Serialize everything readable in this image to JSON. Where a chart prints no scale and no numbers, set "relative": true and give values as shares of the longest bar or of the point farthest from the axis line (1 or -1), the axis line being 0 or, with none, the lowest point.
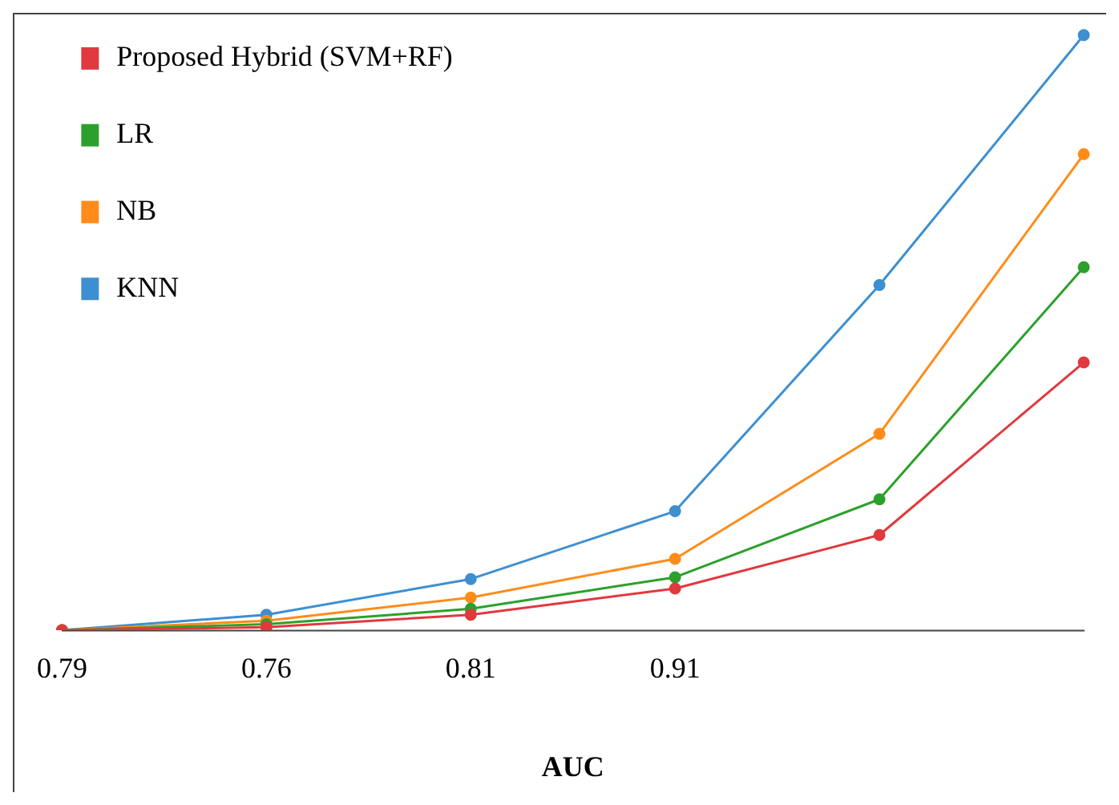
{
  "chart_data": {
    "type": "line",
    "xlabel": "AUC",
    "categories": [
      "0.79",
      "0.76",
      "0.81",
      "0.91",
      null,
      null
    ],
    "relative": true,
    "marker": "circle",
    "grid": false,
    "legend": "top left",
    "series": [
      {
        "name": "Proposed Hybrid (SVM+RF)",
        "color": "#e0393e",
        "values": [
          0,
          0.005,
          0.026,
          0.07,
          0.16,
          0.45
        ]
      },
      {
        "name": "LR",
        "color": "#2ca02c",
        "values": [
          0,
          0.01,
          0.036,
          0.089,
          0.22,
          0.61
        ]
      },
      {
        "name": "NB",
        "color": "#ff8c1a",
        "values": [
          0,
          0.016,
          0.055,
          0.12,
          0.33,
          0.8
        ]
      },
      {
        "name": "KNN",
        "color": "#3d8fd1",
        "values": [
          0,
          0.026,
          0.086,
          0.2,
          0.58,
          1
        ]
      }
    ]
  }
}
